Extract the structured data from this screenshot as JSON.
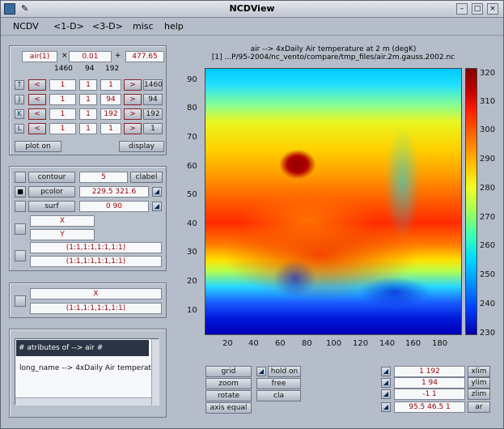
{
  "window": {
    "title": "NCDView"
  },
  "menu": [
    "NCDV",
    "<1-D>",
    "<3-D>",
    "misc",
    "help"
  ],
  "vars": {
    "variable": "air(1)",
    "times": "×",
    "scale": "0.01",
    "plus": "+",
    "offset": "477.65",
    "dims": [
      "1460",
      "94",
      "192"
    ],
    "rows": [
      {
        "label": "T",
        "a": "1",
        "b": "1",
        "c": "1",
        "d": "1460"
      },
      {
        "label": "J",
        "a": "1",
        "b": "1",
        "c": "94",
        "d": "94"
      },
      {
        "label": "K",
        "a": "1",
        "b": "1",
        "c": "192",
        "d": "192"
      },
      {
        "label": "L",
        "a": "1",
        "b": "1",
        "c": "1",
        "d": "1"
      }
    ],
    "nav": {
      "prev": "<",
      "next": ">"
    },
    "plot_on": "plot on",
    "display": "display"
  },
  "contour": {
    "contour_label": "contour",
    "contour_val": "5",
    "clabel": "clabel",
    "pcolor_label": "pcolor",
    "pcolor_val": "229.5  321.6",
    "surf_label": "surf",
    "surf_val": "0  90",
    "x": "X",
    "y": "Y",
    "range1": "(1:1,1:1,1:1,1:1)",
    "range2": "(1:1,1:1,1:1,1:1)"
  },
  "lower": {
    "x": "X",
    "range": "(1:1,1:1,1:1,1:1)"
  },
  "attributes": {
    "header": "#  atributes of --> air  #",
    "line": "long_name --> 4xDaily Air temperat"
  },
  "plot": {
    "title1": "air --> 4xDaily Air temperature at 2 m (degK)",
    "title2": "[1]  ...P/95-2004/nc_vento/compare/tmp_files/air.2m.gauss.2002.nc",
    "yticks": [
      "90",
      "80",
      "70",
      "60",
      "50",
      "40",
      "30",
      "20",
      "10"
    ],
    "xticks": [
      "20",
      "40",
      "60",
      "80",
      "100",
      "120",
      "140",
      "160",
      "180"
    ],
    "cticks": [
      "320",
      "310",
      "300",
      "290",
      "280",
      "270",
      "260",
      "250",
      "240",
      "230"
    ]
  },
  "controls": {
    "grid": "grid",
    "hold_on": "hold on",
    "zoom": "zoom",
    "free": "free",
    "rotate": "rotate",
    "cla": "cla",
    "axis_equal": "axis equal",
    "xlim_val": "1  192",
    "ylim_val": "1  94",
    "zlim_val": "-1  1",
    "ar_val": "95.5  46.5  1",
    "xlim": "xlim",
    "ylim": "ylim",
    "zlim": "zlim",
    "ar": "ar"
  }
}
